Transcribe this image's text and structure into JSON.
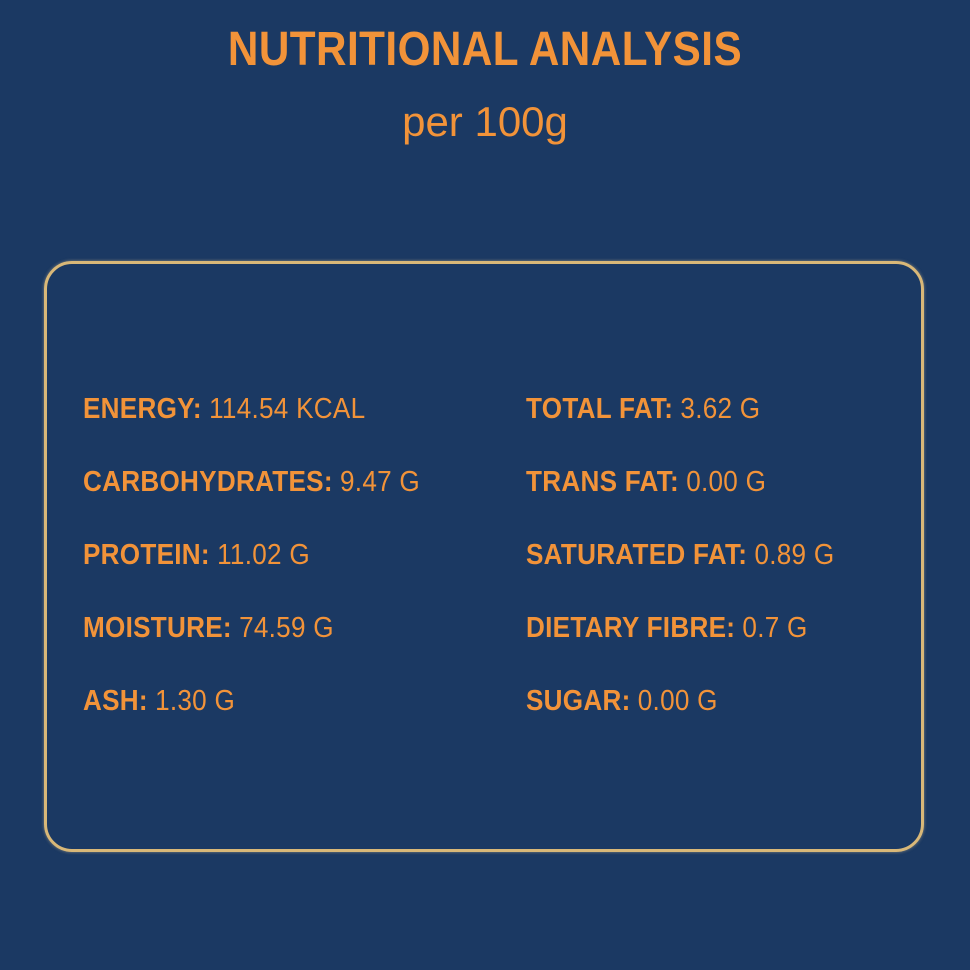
{
  "header": {
    "title": "NUTRITIONAL ANALYSIS",
    "subtitle": "per 100g"
  },
  "columns": [
    [
      {
        "label": "ENERGY:",
        "value": "114.54 KCAL"
      },
      {
        "label": "CARBOHYDRATES:",
        "value": "9.47 G"
      },
      {
        "label": "PROTEIN:",
        "value": "11.02 G"
      },
      {
        "label": "MOISTURE:",
        "value": "74.59 G"
      },
      {
        "label": "ASH:",
        "value": "1.30 G"
      }
    ],
    [
      {
        "label": "TOTAL FAT:",
        "value": "3.62 G"
      },
      {
        "label": "TRANS FAT:",
        "value": "0.00 G"
      },
      {
        "label": "SATURATED FAT:",
        "value": "0.89 G"
      },
      {
        "label": "DIETARY FIBRE:",
        "value": "0.7 G"
      },
      {
        "label": "SUGAR:",
        "value": "0.00 G"
      }
    ]
  ]
}
